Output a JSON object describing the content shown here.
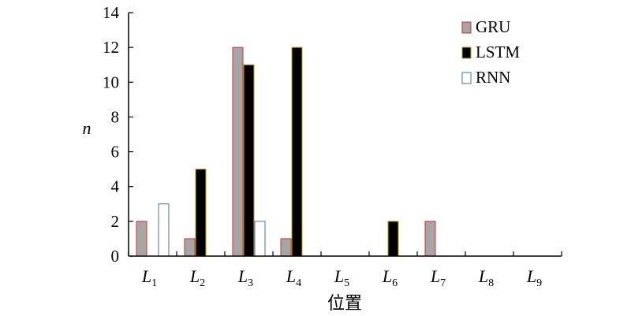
{
  "chart_data": {
    "type": "bar",
    "categories": [
      {
        "main": "L",
        "sub": "1"
      },
      {
        "main": "L",
        "sub": "2"
      },
      {
        "main": "L",
        "sub": "3"
      },
      {
        "main": "L",
        "sub": "4"
      },
      {
        "main": "L",
        "sub": "5"
      },
      {
        "main": "L",
        "sub": "6"
      },
      {
        "main": "L",
        "sub": "7"
      },
      {
        "main": "L",
        "sub": "8"
      },
      {
        "main": "L",
        "sub": "9"
      }
    ],
    "series": [
      {
        "name": "GRU",
        "fill": "#a6a6a6",
        "stroke": "#cc3333",
        "values": [
          2,
          1,
          12,
          1,
          0,
          0,
          2,
          0,
          0
        ]
      },
      {
        "name": "LSTM",
        "fill": "#000000",
        "stroke": "#c8a000",
        "values": [
          0,
          5,
          11,
          12,
          0,
          2,
          0,
          0,
          0
        ]
      },
      {
        "name": "RNN",
        "fill": "#ffffff",
        "stroke": "#4a6fb0",
        "values": [
          3,
          0,
          2,
          0,
          0,
          0,
          0,
          0,
          0
        ]
      }
    ],
    "xlabel": "位置",
    "ylabel": "n",
    "ylim": [
      0,
      14
    ],
    "yticks": [
      0,
      2,
      4,
      6,
      8,
      10,
      12,
      14
    ],
    "legend": "top-right",
    "grid": false
  }
}
